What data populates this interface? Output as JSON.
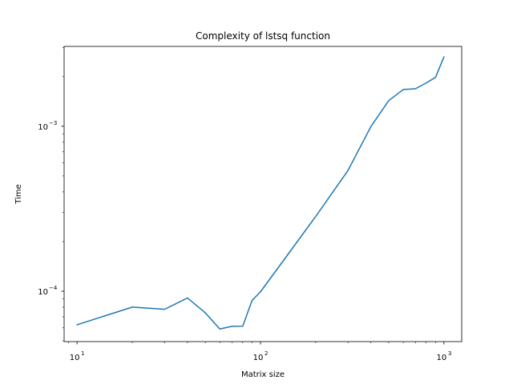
{
  "chart_data": {
    "type": "line",
    "title": "Complexity of lstsq function",
    "xlabel": "Matrix size",
    "ylabel": "Time",
    "xscale": "log",
    "yscale": "log",
    "xlim": [
      8.5,
      1250
    ],
    "ylim": [
      4.95e-05,
      0.00305
    ],
    "grid": false,
    "x_major_ticks": [
      {
        "value": 10,
        "base": "10",
        "exp": "1"
      },
      {
        "value": 100,
        "base": "10",
        "exp": "2"
      },
      {
        "value": 1000,
        "base": "10",
        "exp": "3"
      }
    ],
    "y_major_ticks": [
      {
        "value": 0.0001,
        "base": "10",
        "exp": "−4"
      },
      {
        "value": 0.001,
        "base": "10",
        "exp": "−3"
      }
    ],
    "series": [
      {
        "color": "#1f77b4",
        "x": [
          10,
          20,
          30,
          40,
          50,
          60,
          70,
          80,
          90,
          100,
          200,
          300,
          400,
          500,
          600,
          700,
          800,
          900,
          1000
        ],
        "y": [
          6.26e-05,
          8.01e-05,
          7.77e-05,
          9.1e-05,
          7.4e-05,
          5.9e-05,
          6.13e-05,
          6.14e-05,
          8.8e-05,
          9.92e-05,
          0.000284,
          0.00054,
          0.000996,
          0.00143,
          0.00167,
          0.00169,
          0.00183,
          0.00198,
          0.00263
        ]
      }
    ]
  }
}
